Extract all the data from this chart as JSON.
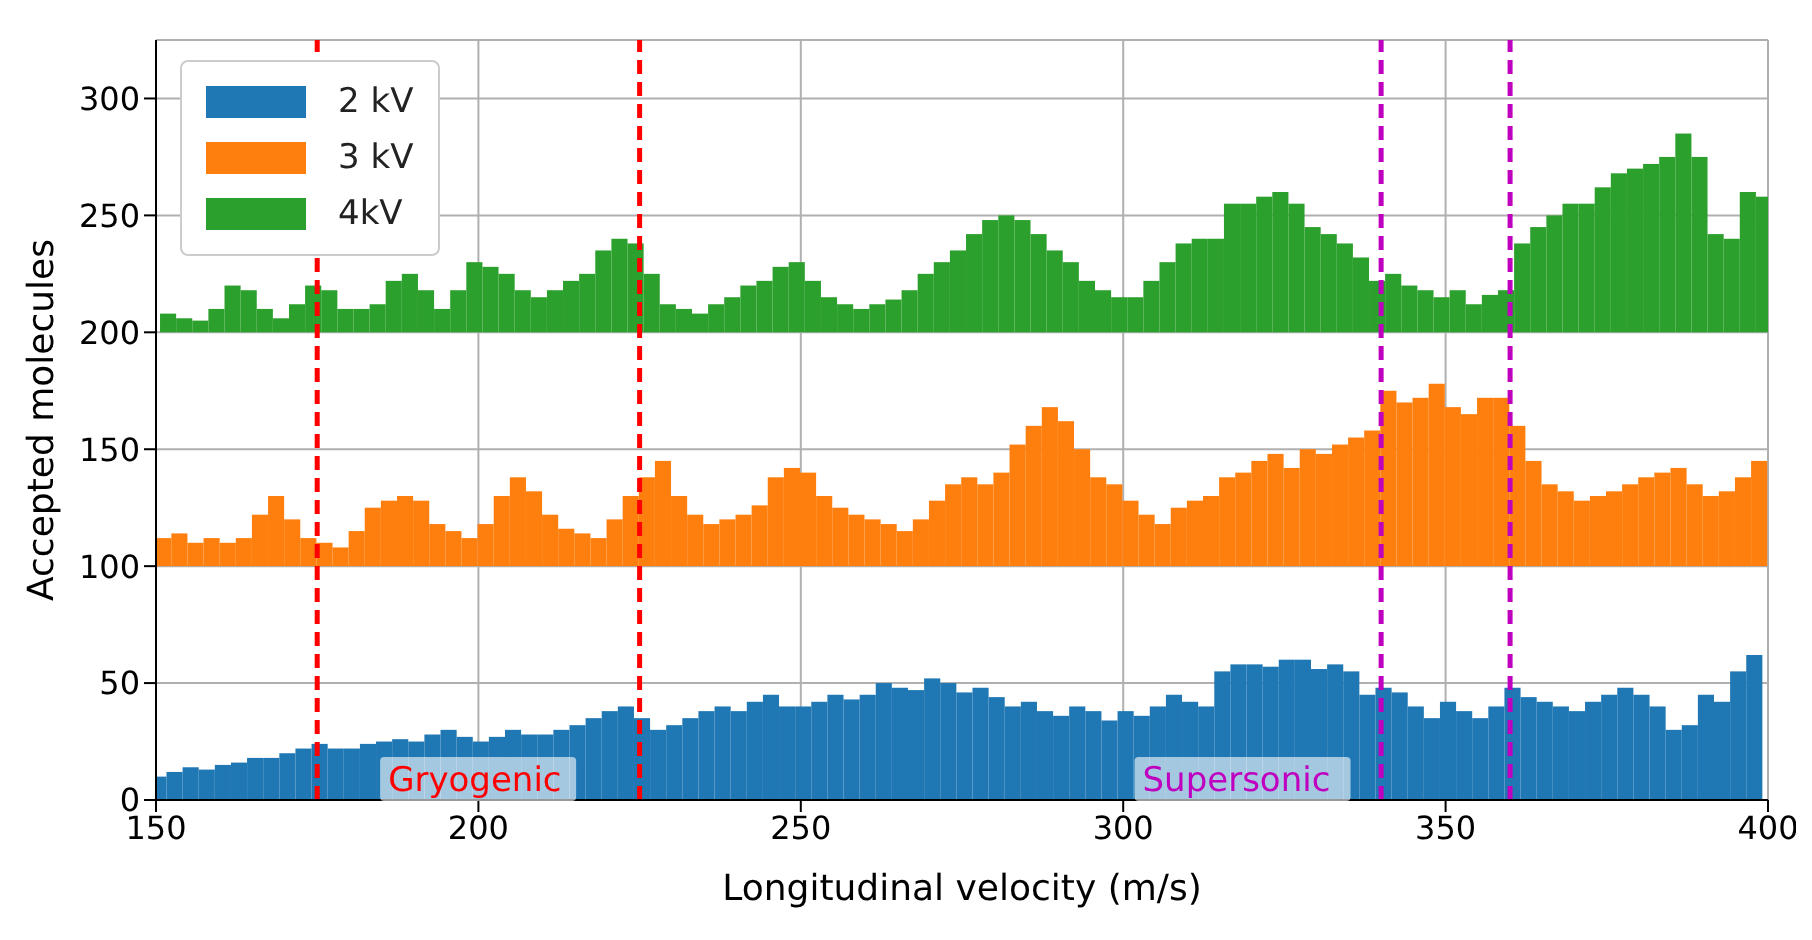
{
  "chart_data": {
    "type": "histogram",
    "xlabel": "Longitudinal velocity (m/s)",
    "ylabel": "Accepted  molecules",
    "bins": [
      150,
      152.5,
      155,
      157.5,
      160,
      162.5,
      165,
      167.5,
      170,
      172.5,
      175,
      177.5,
      180,
      182.5,
      185,
      187.5,
      190,
      192.5,
      195,
      197.5,
      200,
      202.5,
      205,
      207.5,
      210,
      212.5,
      215,
      217.5,
      220,
      222.5,
      225,
      227.5,
      230,
      232.5,
      235,
      237.5,
      240,
      242.5,
      245,
      247.5,
      250,
      252.5,
      255,
      257.5,
      260,
      262.5,
      265,
      267.5,
      270,
      272.5,
      275,
      277.5,
      280,
      282.5,
      285,
      287.5,
      290,
      292.5,
      295,
      297.5,
      300,
      302.5,
      305,
      307.5,
      310,
      312.5,
      315,
      317.5,
      320,
      322.5,
      325,
      327.5,
      330,
      332.5,
      335,
      337.5,
      340,
      342.5,
      345,
      347.5,
      350,
      352.5,
      355,
      357.5,
      360,
      362.5,
      365,
      367.5,
      370,
      372.5,
      375,
      377.5,
      380,
      382.5,
      385,
      387.5,
      390,
      392.5,
      395,
      397.5,
      400
    ],
    "series": [
      {
        "name": "2 kV",
        "color": "#1f77b4",
        "base": [
          0,
          0,
          0,
          0,
          0,
          0,
          0,
          0,
          0,
          0,
          0,
          0,
          0,
          0,
          0,
          0,
          0,
          0,
          0,
          0,
          0,
          0,
          0,
          0,
          0,
          0,
          0,
          0,
          0,
          0,
          0,
          0,
          0,
          0,
          0,
          0,
          0,
          0,
          0,
          0,
          0,
          0,
          0,
          0,
          0,
          0,
          0,
          0,
          0,
          0,
          0,
          0,
          0,
          0,
          0,
          0,
          0,
          0,
          0,
          0,
          0,
          0,
          0,
          0,
          0,
          0,
          0,
          0,
          0,
          0,
          0,
          0,
          0,
          0,
          0,
          0,
          0,
          0,
          0,
          0,
          0,
          0,
          0,
          0,
          0,
          0,
          0,
          0,
          0,
          0,
          0,
          0,
          0,
          0,
          0,
          0,
          0,
          0,
          0,
          0
        ],
        "values": [
          10,
          12,
          14,
          13,
          15,
          16,
          18,
          18,
          20,
          22,
          24,
          22,
          22,
          24,
          25,
          26,
          25,
          28,
          30,
          27,
          25,
          27,
          30,
          28,
          28,
          30,
          32,
          35,
          38,
          40,
          35,
          30,
          32,
          35,
          38,
          40,
          38,
          42,
          45,
          40,
          40,
          42,
          45,
          43,
          45,
          50,
          48,
          47,
          52,
          50,
          46,
          48,
          44,
          40,
          42,
          38,
          36,
          40,
          38,
          34,
          38,
          36,
          40,
          45,
          42,
          40,
          55,
          58,
          58,
          57,
          60,
          60,
          56,
          58,
          55,
          45,
          48,
          46,
          40,
          35,
          42,
          38,
          35,
          40,
          48,
          44,
          42,
          40,
          38,
          42,
          45,
          48,
          45,
          40,
          30,
          32,
          45,
          42,
          55,
          62
        ]
      },
      {
        "name": "3 kV",
        "color": "#ff7f0e",
        "base": [
          100,
          100,
          100,
          100,
          100,
          100,
          100,
          100,
          100,
          100,
          100,
          100,
          100,
          100,
          100,
          100,
          100,
          100,
          100,
          100,
          100,
          100,
          100,
          100,
          100,
          100,
          100,
          100,
          100,
          100,
          100,
          100,
          100,
          100,
          100,
          100,
          100,
          100,
          100,
          100,
          100,
          100,
          100,
          100,
          100,
          100,
          100,
          100,
          100,
          100,
          100,
          100,
          100,
          100,
          100,
          100,
          100,
          100,
          100,
          100,
          100,
          100,
          100,
          100,
          100,
          100,
          100,
          100,
          100,
          100,
          100,
          100,
          100,
          100,
          100,
          100,
          100,
          100,
          100,
          100,
          100,
          100,
          100,
          100,
          100,
          100,
          100,
          100,
          100,
          100,
          100,
          100,
          100,
          100,
          100,
          100,
          100,
          100,
          100,
          100
        ],
        "values": [
          12,
          14,
          10,
          12,
          10,
          12,
          22,
          30,
          20,
          12,
          10,
          8,
          15,
          25,
          28,
          30,
          28,
          18,
          15,
          12,
          18,
          30,
          38,
          32,
          22,
          16,
          14,
          12,
          20,
          30,
          38,
          45,
          30,
          22,
          18,
          20,
          22,
          26,
          38,
          42,
          40,
          30,
          25,
          22,
          20,
          18,
          15,
          20,
          28,
          35,
          38,
          35,
          40,
          52,
          60,
          68,
          62,
          50,
          38,
          35,
          28,
          22,
          18,
          25,
          28,
          30,
          38,
          40,
          45,
          48,
          42,
          50,
          48,
          52,
          55,
          58,
          75,
          70,
          72,
          78,
          68,
          65,
          72,
          72,
          60,
          45,
          35,
          32,
          28,
          30,
          32,
          35,
          38,
          40,
          42,
          35,
          30,
          32,
          38,
          45
        ]
      },
      {
        "name": "4kV",
        "color": "#2ca02c",
        "base": [
          200,
          200,
          200,
          200,
          200,
          200,
          200,
          200,
          200,
          200,
          200,
          200,
          200,
          200,
          200,
          200,
          200,
          200,
          200,
          200,
          200,
          200,
          200,
          200,
          200,
          200,
          200,
          200,
          200,
          200,
          200,
          200,
          200,
          200,
          200,
          200,
          200,
          200,
          200,
          200,
          200,
          200,
          200,
          200,
          200,
          200,
          200,
          200,
          200,
          200,
          200,
          200,
          200,
          200,
          200,
          200,
          200,
          200,
          200,
          200,
          200,
          200,
          200,
          200,
          200,
          200,
          200,
          200,
          200,
          200,
          200,
          200,
          200,
          200,
          200,
          200,
          200,
          200,
          200,
          200,
          200,
          200,
          200,
          200,
          200,
          200,
          200,
          200,
          200,
          200,
          200,
          200,
          200,
          200,
          200,
          200,
          200,
          200,
          200,
          200
        ],
        "values": [
          8,
          6,
          5,
          10,
          20,
          18,
          10,
          6,
          12,
          20,
          18,
          10,
          10,
          12,
          22,
          25,
          18,
          10,
          18,
          30,
          28,
          25,
          18,
          15,
          18,
          22,
          25,
          35,
          40,
          38,
          25,
          12,
          10,
          8,
          12,
          15,
          20,
          22,
          28,
          30,
          22,
          15,
          12,
          10,
          12,
          14,
          18,
          25,
          30,
          35,
          42,
          48,
          50,
          48,
          42,
          35,
          30,
          22,
          18,
          15,
          15,
          22,
          30,
          38,
          40,
          40,
          55,
          55,
          58,
          60,
          55,
          45,
          42,
          38,
          32,
          22,
          25,
          20,
          18,
          15,
          18,
          12,
          16,
          18,
          38,
          45,
          50,
          55,
          55,
          62,
          68,
          70,
          72,
          75,
          85,
          75,
          42,
          40,
          60,
          58
        ]
      }
    ],
    "xlim": [
      150,
      400
    ],
    "xticks": [
      150,
      200,
      250,
      300,
      350,
      400
    ],
    "ylim": [
      0,
      325
    ],
    "yticks": [
      0,
      50,
      100,
      150,
      200,
      250,
      300
    ],
    "grid": true,
    "legend": "top left",
    "ref_lines": [
      {
        "axis": "x",
        "value": 175,
        "color": "#ff0000",
        "line_style": "dashed"
      },
      {
        "axis": "x",
        "value": 225,
        "color": "#ff0000",
        "line_style": "dashed"
      },
      {
        "axis": "x",
        "value": 340,
        "color": "#bf00bf",
        "line_style": "dashed"
      },
      {
        "axis": "x",
        "value": 360,
        "color": "#bf00bf",
        "line_style": "dashed"
      }
    ],
    "annotations": [
      {
        "text": "Gryogenic",
        "x": 186,
        "y": 9
      },
      {
        "text": "Supersonic",
        "x": 303,
        "y": 9
      }
    ]
  }
}
